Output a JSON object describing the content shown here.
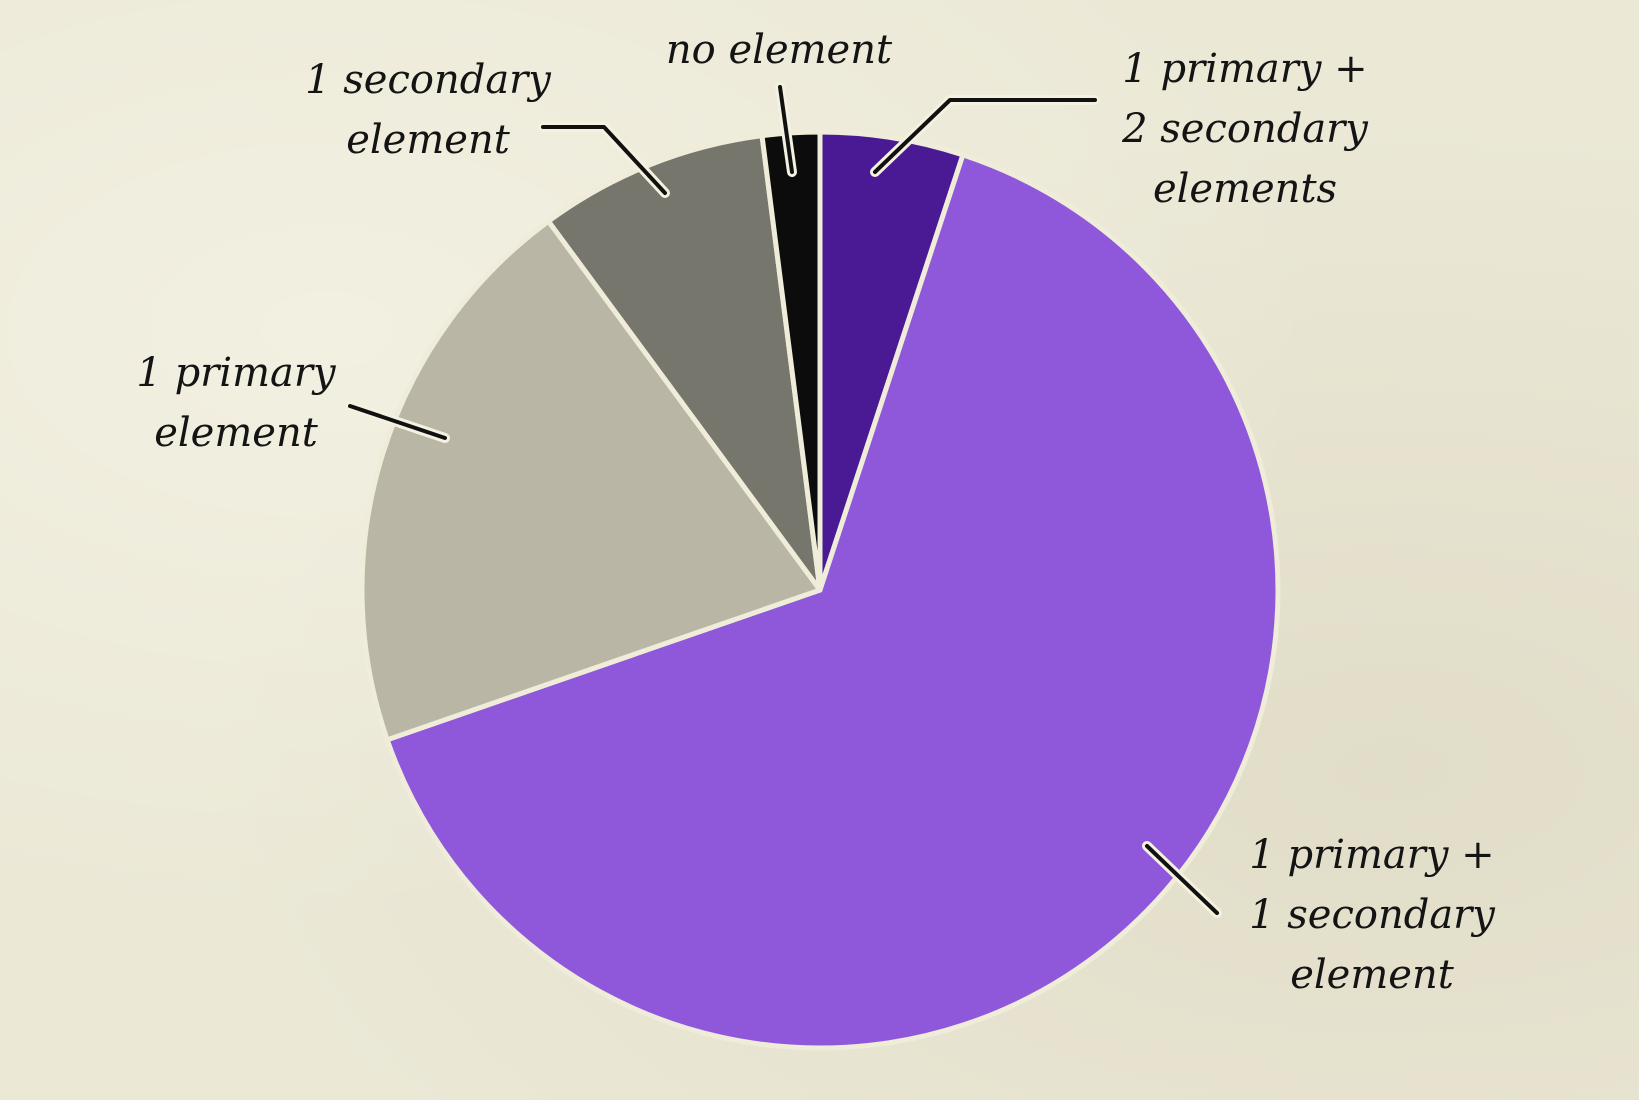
{
  "chart_data": {
    "type": "pie",
    "title": "",
    "start_angle_deg": 0,
    "direction": "clockwise",
    "slices": [
      {
        "label": "1 primary +\n2 secondary\nelements",
        "value": 5,
        "color": "#4a1a94"
      },
      {
        "label": "1 primary +\n1 secondary\nelement",
        "value": 64,
        "color": "#8f58da"
      },
      {
        "label": "1 primary\nelement",
        "value": 20,
        "color": "#b9b6a6"
      },
      {
        "label": "1 secondary\nelement",
        "value": 8,
        "color": "#76766d"
      },
      {
        "label": "no element",
        "value": 2,
        "color": "#0c0c0c"
      }
    ],
    "legend": "none"
  }
}
